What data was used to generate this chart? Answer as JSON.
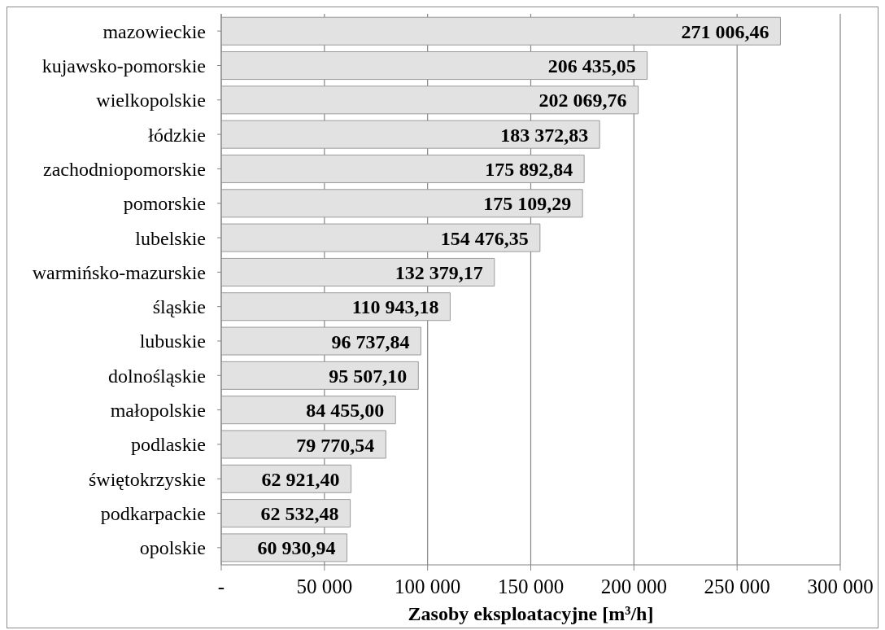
{
  "chart_data": {
    "type": "bar",
    "orientation": "horizontal",
    "categories": [
      "mazowieckie",
      "kujawsko-pomorskie",
      "wielkopolskie",
      "łódzkie",
      "zachodniopomorskie",
      "pomorskie",
      "lubelskie",
      "warmińsko-mazurskie",
      "śląskie",
      "lubuskie",
      "dolnośląskie",
      "małopolskie",
      "podlaskie",
      "świętokrzyskie",
      "podkarpackie",
      "opolskie"
    ],
    "values": [
      271006.46,
      206435.05,
      202069.76,
      183372.83,
      175892.84,
      175109.29,
      154476.35,
      132379.17,
      110943.18,
      96737.84,
      95507.1,
      84455.0,
      79770.54,
      62921.4,
      62532.48,
      60930.94
    ],
    "value_labels": [
      "271 006,46",
      "206 435,05",
      "202 069,76",
      "183 372,83",
      "175 892,84",
      "175 109,29",
      "154 476,35",
      "132 379,17",
      "110 943,18",
      "96 737,84",
      "95 507,10",
      "84 455,00",
      "79 770,54",
      "62 921,40",
      "62 532,48",
      "60 930,94"
    ],
    "color": "#e2e2e2",
    "xlabel": "Zasoby eksploatacyjne [m³/h]",
    "xlim": [
      0,
      300000
    ],
    "xticks": [
      {
        "value": 0,
        "label": "-"
      },
      {
        "value": 50000,
        "label": "50 000"
      },
      {
        "value": 100000,
        "label": "100 000"
      },
      {
        "value": 150000,
        "label": "150 000"
      },
      {
        "value": 200000,
        "label": "200 000"
      },
      {
        "value": 250000,
        "label": "250 000"
      },
      {
        "value": 300000,
        "label": "300 000"
      }
    ],
    "grid": "x"
  }
}
